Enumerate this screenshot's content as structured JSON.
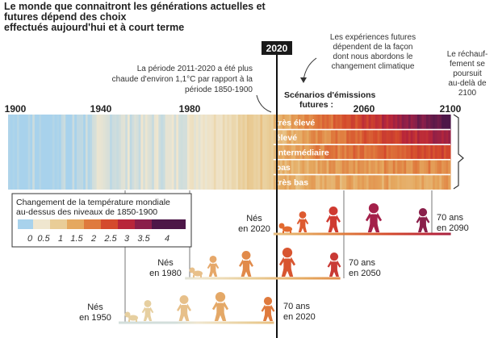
{
  "title_line1": "Le monde que connaitront les générations actuelles et futures dépend des choix",
  "title_line2": "effectués aujourd'hui et à court terme",
  "year_marker": "2020",
  "annotation_period": [
    "La période 2011-2020 a été plus",
    "chaude d'environ 1,1°C par rapport à la",
    "période 1850-1900"
  ],
  "annotation_future": [
    "Les expériences futures",
    "dépendent de la façon",
    "dont nous abordons le",
    "changement climatique"
  ],
  "annotation_warming": [
    "Le réchauf-",
    "fement se",
    "poursuit",
    "au-delà de",
    "2100"
  ],
  "scenarios_title": [
    "Scénarios d'émissions",
    "futures :"
  ],
  "axis_years": [
    "1900",
    "1940",
    "1980",
    "2060",
    "2100"
  ],
  "scenarios": [
    {
      "label": "très élevé",
      "color": "#5c1a55"
    },
    {
      "label": "élevé",
      "color": "#8a1f4a"
    },
    {
      "label": "intermédiaire",
      "color": "#b51f3a"
    },
    {
      "label": "bas",
      "color": "#d2362e"
    },
    {
      "label": "très bas",
      "color": "#e24f2c"
    }
  ],
  "legend": {
    "title": [
      "Changement de la température mondiale",
      "au-dessus des niveaux de 1850-1900"
    ],
    "ticks": [
      "0",
      "0.5",
      "1",
      "1.5",
      "2",
      "2.5",
      "3",
      "3.5",
      "4"
    ],
    "colors": [
      "#a8d2ec",
      "#efe6cf",
      "#e9cd97",
      "#e5a85f",
      "#df7a3d",
      "#d44a2c",
      "#b8263a",
      "#8a1f4a",
      "#4d1748"
    ]
  },
  "generations": [
    {
      "born_word": "Nés",
      "born_year": "en 1950",
      "age_word": "70 ans",
      "age_year": "en 2020"
    },
    {
      "born_word": "Nés",
      "born_year": "en 1980",
      "age_word": "70 ans",
      "age_year": "en 2050"
    },
    {
      "born_word": "Nés",
      "born_year": "en 2020",
      "age_word": "70 ans",
      "age_year": "en 2090"
    }
  ]
}
